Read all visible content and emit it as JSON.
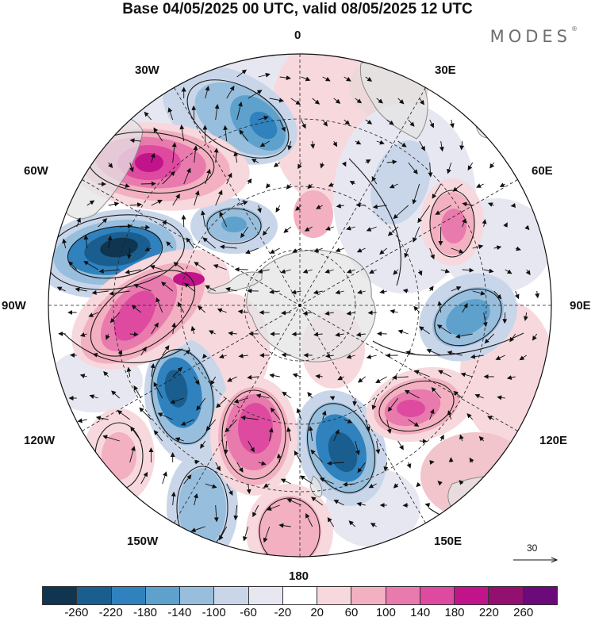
{
  "title": "Base 04/05/2025 00 UTC, valid 08/05/2025 12 UTC",
  "brand": "MODES",
  "brand_mark": "®",
  "longitude_labels": {
    "n0": "0",
    "e30": "30E",
    "e60": "60E",
    "e90": "90E",
    "e120": "120E",
    "e150": "150E",
    "s180": "180",
    "w150": "150W",
    "w120": "120W",
    "w90": "90W",
    "w60": "60W",
    "w30": "30W"
  },
  "reference_vector": {
    "label": "30"
  },
  "colorbar": {
    "colors": [
      "#0f3550",
      "#195e8f",
      "#2f82bd",
      "#5ea1cc",
      "#98bedd",
      "#c9d6ea",
      "#e7e7f2",
      "#ffffff",
      "#f7d8dd",
      "#f2b0c1",
      "#e97aad",
      "#de4aa0",
      "#c2148a",
      "#941070",
      "#6b0a78"
    ],
    "ticks": [
      "-260",
      "-220",
      "-180",
      "-140",
      "-100",
      "-60",
      "-20",
      "20",
      "60",
      "100",
      "140",
      "180",
      "220",
      "260"
    ]
  },
  "colors": {
    "land": "#e4e4e4",
    "coast": "#8a8a8a",
    "grid": "#222222",
    "border": "#111111"
  }
}
